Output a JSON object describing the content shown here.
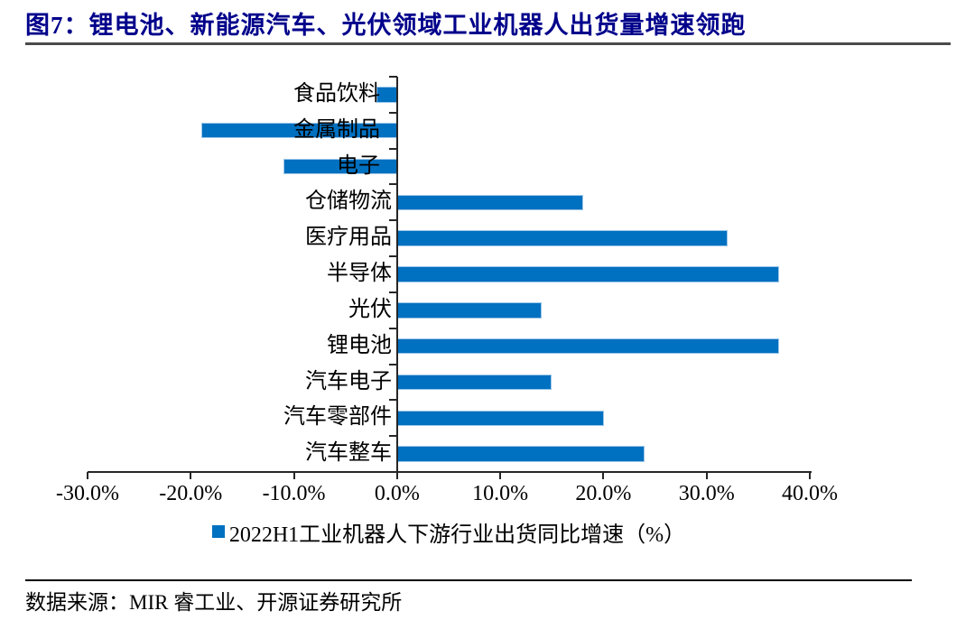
{
  "figure": {
    "title": "图7：锂电池、新能源汽车、光伏领域工业机器人出货量增速领跑"
  },
  "chart_data": {
    "type": "bar",
    "orientation": "horizontal",
    "categories": [
      "食品饮料",
      "金属制品",
      "电子",
      "仓储物流",
      "医疗用品",
      "半导体",
      "光伏",
      "锂电池",
      "汽车电子",
      "汽车零部件",
      "汽车整车"
    ],
    "values": [
      -2.0,
      -19.0,
      -11.0,
      18.0,
      32.0,
      37.0,
      14.0,
      37.0,
      15.0,
      20.0,
      24.0
    ],
    "unit": "%",
    "series_name": "2022H1工业机器人下游行业出货同比增速（%）",
    "xlim": [
      -30,
      40
    ],
    "x_tick_step": 10,
    "x_tick_labels": [
      "-30.0%",
      "-20.0%",
      "-10.0%",
      "0.0%",
      "10.0%",
      "20.0%",
      "30.0%",
      "40.0%"
    ],
    "grid": false,
    "legend_position": "bottom",
    "bar_color": "#0070C0",
    "bar_border_color": "#9DC7EA"
  },
  "legend": {
    "marker": "■",
    "label": "2022H1工业机器人下游行业出货同比增速（%）"
  },
  "source": {
    "text": "数据来源：MIR 睿工业、开源证券研究所"
  },
  "colors": {
    "title": "#00008B",
    "axis": "#262626",
    "title_rule": "#4a4a4a",
    "bottom_rule": "#000000"
  }
}
